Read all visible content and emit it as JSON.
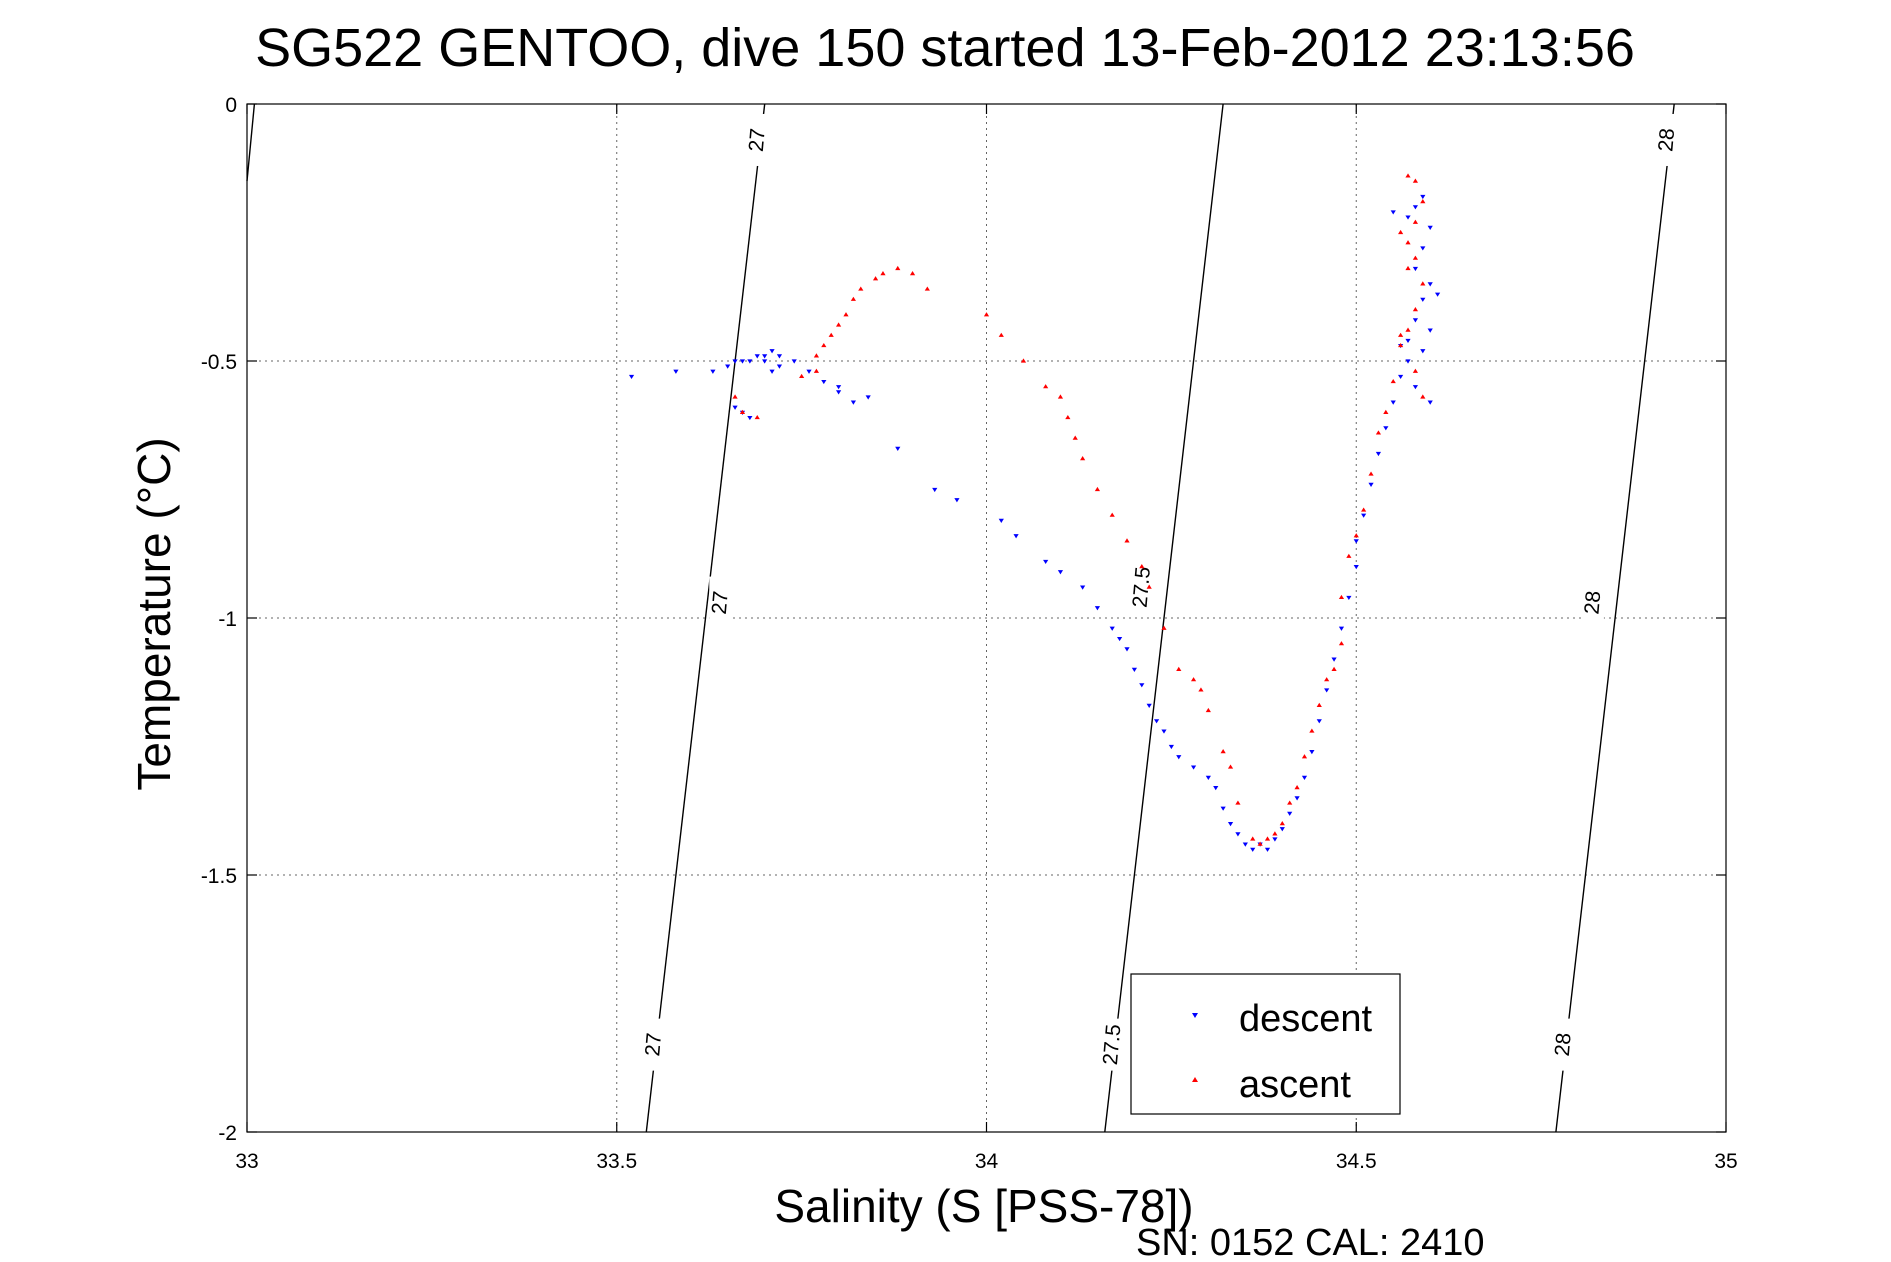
{
  "chart_data": {
    "type": "scatter",
    "title": "SG522 GENTOO, dive 150 started 13-Feb-2012 23:13:56",
    "xlabel": "Salinity (S [PSS-78])",
    "ylabel": "Temperature (°C)",
    "xlim": [
      33,
      35
    ],
    "ylim": [
      -2,
      0
    ],
    "xticks": [
      33,
      33.5,
      34,
      34.5,
      35
    ],
    "xtick_labels": [
      "33",
      "33.5",
      "34",
      "34.5",
      "35"
    ],
    "yticks": [
      0,
      -0.5,
      -1,
      -1.5,
      -2
    ],
    "ytick_labels": [
      "0",
      "-0.5",
      "-1",
      "-1.5",
      "-2"
    ],
    "grid": true,
    "legend_position": "bottom-right",
    "footer_text": "SN: 0152  CAL: 2410",
    "density_contours": [
      {
        "level": 27,
        "label": "27",
        "points": [
          [
            33.54,
            -2
          ],
          [
            33.62,
            -1
          ],
          [
            33.7,
            0
          ]
        ],
        "label_positions": [
          [
            33.69,
            -0.07
          ],
          [
            33.64,
            -0.97
          ],
          [
            33.55,
            -1.83
          ]
        ]
      },
      {
        "level": 27.5,
        "label": "27.5",
        "points": [
          [
            34.16,
            -2
          ],
          [
            34.24,
            -1
          ],
          [
            34.32,
            0
          ]
        ],
        "label_positions": [
          [
            34.17,
            -1.83
          ],
          [
            34.21,
            -0.94
          ]
        ]
      },
      {
        "level": 28,
        "label": "28",
        "points": [
          [
            34.77,
            -2
          ],
          [
            34.85,
            -1
          ],
          [
            34.93,
            0
          ]
        ],
        "label_positions": [
          [
            34.92,
            -0.07
          ],
          [
            34.82,
            -0.97
          ],
          [
            34.78,
            -1.83
          ]
        ]
      },
      {
        "level": 26.8,
        "label": "",
        "points": [
          [
            33.0,
            -0.15
          ],
          [
            33.01,
            0
          ]
        ],
        "label_positions": []
      }
    ],
    "series": [
      {
        "name": "descent",
        "color": "#0000ff",
        "marker": "triangle-down",
        "points": [
          [
            33.52,
            -0.53
          ],
          [
            33.58,
            -0.52
          ],
          [
            33.63,
            -0.52
          ],
          [
            33.65,
            -0.51
          ],
          [
            33.66,
            -0.5
          ],
          [
            33.67,
            -0.5
          ],
          [
            33.68,
            -0.5
          ],
          [
            33.69,
            -0.49
          ],
          [
            33.7,
            -0.49
          ],
          [
            33.71,
            -0.48
          ],
          [
            33.72,
            -0.49
          ],
          [
            33.7,
            -0.5
          ],
          [
            33.71,
            -0.52
          ],
          [
            33.72,
            -0.51
          ],
          [
            33.67,
            -0.6
          ],
          [
            33.66,
            -0.59
          ],
          [
            33.68,
            -0.61
          ],
          [
            33.74,
            -0.5
          ],
          [
            33.76,
            -0.52
          ],
          [
            33.78,
            -0.54
          ],
          [
            33.8,
            -0.56
          ],
          [
            33.84,
            -0.57
          ],
          [
            33.82,
            -0.58
          ],
          [
            33.8,
            -0.55
          ],
          [
            33.88,
            -0.67
          ],
          [
            33.93,
            -0.75
          ],
          [
            33.96,
            -0.77
          ],
          [
            34.02,
            -0.81
          ],
          [
            34.04,
            -0.84
          ],
          [
            34.08,
            -0.89
          ],
          [
            34.1,
            -0.91
          ],
          [
            34.13,
            -0.94
          ],
          [
            34.15,
            -0.98
          ],
          [
            34.17,
            -1.02
          ],
          [
            34.18,
            -1.04
          ],
          [
            34.19,
            -1.06
          ],
          [
            34.2,
            -1.1
          ],
          [
            34.21,
            -1.13
          ],
          [
            34.22,
            -1.17
          ],
          [
            34.23,
            -1.2
          ],
          [
            34.24,
            -1.22
          ],
          [
            34.25,
            -1.25
          ],
          [
            34.26,
            -1.27
          ],
          [
            34.28,
            -1.29
          ],
          [
            34.3,
            -1.31
          ],
          [
            34.31,
            -1.33
          ],
          [
            34.32,
            -1.37
          ],
          [
            34.33,
            -1.4
          ],
          [
            34.34,
            -1.42
          ],
          [
            34.35,
            -1.44
          ],
          [
            34.36,
            -1.45
          ],
          [
            34.37,
            -1.44
          ],
          [
            34.38,
            -1.45
          ],
          [
            34.39,
            -1.43
          ],
          [
            34.4,
            -1.41
          ],
          [
            34.41,
            -1.38
          ],
          [
            34.42,
            -1.35
          ],
          [
            34.43,
            -1.31
          ],
          [
            34.44,
            -1.26
          ],
          [
            34.45,
            -1.2
          ],
          [
            34.46,
            -1.14
          ],
          [
            34.47,
            -1.08
          ],
          [
            34.48,
            -1.02
          ],
          [
            34.49,
            -0.96
          ],
          [
            34.5,
            -0.9
          ],
          [
            34.5,
            -0.85
          ],
          [
            34.51,
            -0.8
          ],
          [
            34.52,
            -0.74
          ],
          [
            34.53,
            -0.68
          ],
          [
            34.54,
            -0.63
          ],
          [
            34.55,
            -0.58
          ],
          [
            34.56,
            -0.53
          ],
          [
            34.57,
            -0.5
          ],
          [
            34.56,
            -0.47
          ],
          [
            34.58,
            -0.42
          ],
          [
            34.59,
            -0.38
          ],
          [
            34.6,
            -0.35
          ],
          [
            34.58,
            -0.32
          ],
          [
            34.59,
            -0.28
          ],
          [
            34.6,
            -0.24
          ],
          [
            34.58,
            -0.2
          ],
          [
            34.59,
            -0.18
          ],
          [
            34.57,
            -0.22
          ],
          [
            34.55,
            -0.21
          ],
          [
            34.6,
            -0.44
          ],
          [
            34.59,
            -0.48
          ],
          [
            34.61,
            -0.37
          ],
          [
            34.6,
            -0.58
          ],
          [
            34.58,
            -0.55
          ],
          [
            34.57,
            -0.46
          ]
        ]
      },
      {
        "name": "ascent",
        "color": "#ff0000",
        "marker": "triangle-up",
        "points": [
          [
            33.66,
            -0.57
          ],
          [
            33.67,
            -0.6
          ],
          [
            33.69,
            -0.61
          ],
          [
            33.75,
            -0.53
          ],
          [
            33.77,
            -0.52
          ],
          [
            33.77,
            -0.49
          ],
          [
            33.78,
            -0.47
          ],
          [
            33.79,
            -0.45
          ],
          [
            33.8,
            -0.43
          ],
          [
            33.81,
            -0.41
          ],
          [
            33.82,
            -0.38
          ],
          [
            33.83,
            -0.36
          ],
          [
            33.85,
            -0.34
          ],
          [
            33.86,
            -0.33
          ],
          [
            33.88,
            -0.32
          ],
          [
            33.9,
            -0.33
          ],
          [
            33.92,
            -0.36
          ],
          [
            34.0,
            -0.41
          ],
          [
            34.02,
            -0.45
          ],
          [
            34.05,
            -0.5
          ],
          [
            34.08,
            -0.55
          ],
          [
            34.1,
            -0.57
          ],
          [
            34.11,
            -0.61
          ],
          [
            34.12,
            -0.65
          ],
          [
            34.13,
            -0.69
          ],
          [
            34.15,
            -0.75
          ],
          [
            34.17,
            -0.8
          ],
          [
            34.19,
            -0.85
          ],
          [
            34.21,
            -0.9
          ],
          [
            34.22,
            -0.94
          ],
          [
            34.24,
            -1.02
          ],
          [
            34.26,
            -1.1
          ],
          [
            34.28,
            -1.12
          ],
          [
            34.29,
            -1.14
          ],
          [
            34.3,
            -1.18
          ],
          [
            34.32,
            -1.26
          ],
          [
            34.33,
            -1.29
          ],
          [
            34.34,
            -1.36
          ],
          [
            34.36,
            -1.43
          ],
          [
            34.37,
            -1.44
          ],
          [
            34.38,
            -1.43
          ],
          [
            34.39,
            -1.42
          ],
          [
            34.4,
            -1.4
          ],
          [
            34.41,
            -1.36
          ],
          [
            34.42,
            -1.33
          ],
          [
            34.43,
            -1.27
          ],
          [
            34.44,
            -1.22
          ],
          [
            34.45,
            -1.17
          ],
          [
            34.46,
            -1.12
          ],
          [
            34.47,
            -1.1
          ],
          [
            34.48,
            -1.05
          ],
          [
            34.48,
            -0.96
          ],
          [
            34.49,
            -0.88
          ],
          [
            34.5,
            -0.84
          ],
          [
            34.51,
            -0.79
          ],
          [
            34.52,
            -0.72
          ],
          [
            34.53,
            -0.64
          ],
          [
            34.54,
            -0.6
          ],
          [
            34.55,
            -0.54
          ],
          [
            34.56,
            -0.47
          ],
          [
            34.57,
            -0.44
          ],
          [
            34.58,
            -0.4
          ],
          [
            34.59,
            -0.35
          ],
          [
            34.58,
            -0.3
          ],
          [
            34.57,
            -0.27
          ],
          [
            34.58,
            -0.23
          ],
          [
            34.59,
            -0.19
          ],
          [
            34.58,
            -0.15
          ],
          [
            34.57,
            -0.14
          ],
          [
            34.56,
            -0.45
          ],
          [
            34.58,
            -0.52
          ],
          [
            34.59,
            -0.57
          ],
          [
            34.57,
            -0.32
          ],
          [
            34.56,
            -0.25
          ]
        ]
      }
    ]
  }
}
